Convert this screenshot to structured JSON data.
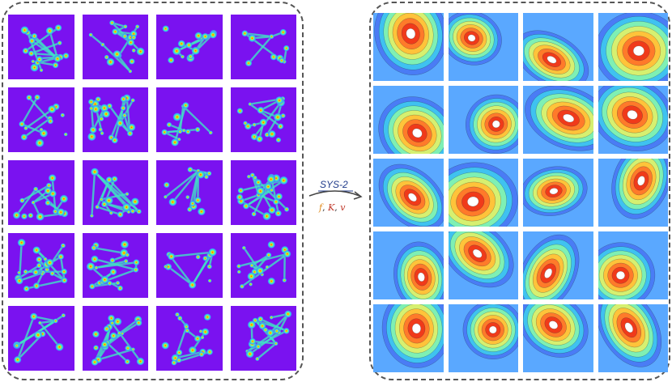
{
  "left_tiles": 20,
  "right_tiles": 20,
  "arrow": {
    "label": "SYS-2",
    "params": [
      {
        "text": "f",
        "color": "#e08a1b"
      },
      {
        "text": "K",
        "color": "#c0392b"
      },
      {
        "text": "v",
        "color": "#c0392b"
      }
    ],
    "params_sep": ", "
  },
  "colors": {
    "left_bg": "#7a12f0",
    "right_bg": "#58b8ff",
    "panel_border": "#555555",
    "arrow_color": "#444444",
    "label_color": "#1f3a8a"
  }
}
